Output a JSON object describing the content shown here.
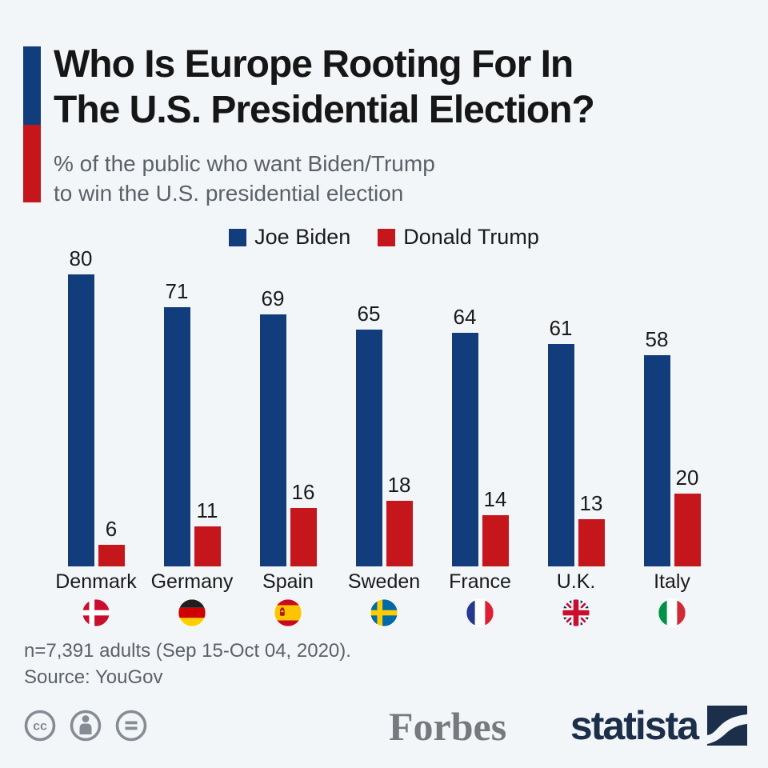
{
  "header": {
    "title_line1": "Who Is Europe Rooting For In",
    "title_line2": "The U.S. Presidential Election?",
    "subtitle_line1": "% of the public who want Biden/Trump",
    "subtitle_line2": "to win the U.S. presidential election"
  },
  "legend": [
    {
      "label": "Joe Biden",
      "color": "#123d7c"
    },
    {
      "label": "Donald Trump",
      "color": "#c5161c"
    }
  ],
  "chart_data": {
    "type": "bar",
    "title": "Who Is Europe Rooting For In The U.S. Presidential Election?",
    "subtitle": "% of the public who want Biden/Trump to win the U.S. presidential election",
    "categories": [
      "Denmark",
      "Germany",
      "Spain",
      "Sweden",
      "France",
      "U.K.",
      "Italy"
    ],
    "series": [
      {
        "name": "Joe Biden",
        "color": "#123d7c",
        "values": [
          80,
          71,
          69,
          65,
          64,
          61,
          58
        ]
      },
      {
        "name": "Donald Trump",
        "color": "#c5161c",
        "values": [
          6,
          11,
          16,
          18,
          14,
          13,
          20
        ]
      }
    ],
    "flags": [
      "flag-denmark",
      "flag-germany",
      "flag-spain",
      "flag-sweden",
      "flag-france",
      "flag-uk",
      "flag-italy"
    ],
    "value_labels_shown": true,
    "ylim": [
      0,
      88
    ],
    "grid": false,
    "legend_position": "top"
  },
  "footnote": {
    "sample": "n=7,391 adults (Sep 15-Oct 04, 2020).",
    "source": "Source: YouGov"
  },
  "branding": {
    "license_icons": [
      "cc-icon",
      "attribution-icon",
      "no-derivatives-icon"
    ],
    "partner_logo": "Forbes",
    "publisher_logo": "statista",
    "statista_color": "#1b2f4b",
    "forbes_color": "#76797e"
  },
  "accent_colors": {
    "blue": "#123d7c",
    "red": "#c5161c"
  }
}
